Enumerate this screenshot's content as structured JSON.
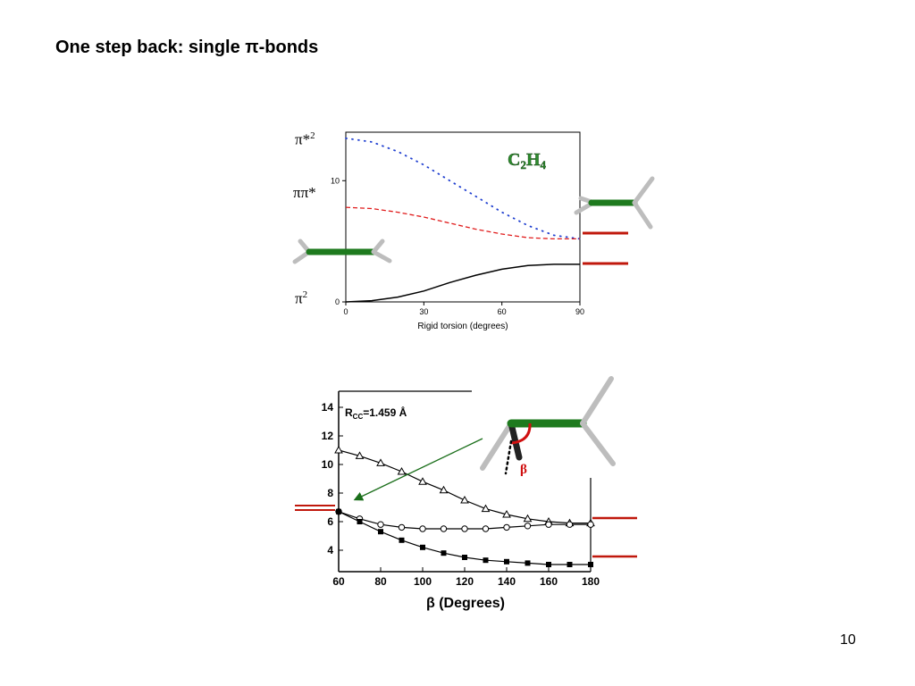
{
  "slide": {
    "title": "One step back: single π-bonds",
    "page_number": "10"
  },
  "top_plot": {
    "molecule_label": "C2H4",
    "molecule_label_main": "C",
    "molecule_label_sub1": "2",
    "molecule_label_mid": "H",
    "molecule_label_sub2": "4",
    "state_labels": {
      "pi_star_sq": "π*",
      "pi_star_sq_sup": "2",
      "pi_pi_star": "ππ*",
      "pi_sq": "π",
      "pi_sq_sup": "2"
    }
  },
  "bottom_plot": {
    "annotation_main": "R",
    "annotation_sub": "CC",
    "annotation_rest": "=1.459 Å",
    "beta_marker": "β"
  },
  "chart_data": [
    {
      "type": "line",
      "xlabel": "Rigid torsion (degrees)",
      "ylabel": "",
      "xlim": [
        0,
        90
      ],
      "ylim": [
        0,
        14
      ],
      "x_ticks": [
        "0",
        "30",
        "60",
        "90"
      ],
      "y_ticks": [
        "0",
        "10"
      ],
      "series": [
        {
          "name": "π*2",
          "style": "dotted",
          "color": "#1f3fd0",
          "x": [
            0,
            10,
            20,
            30,
            40,
            50,
            60,
            70,
            80,
            90
          ],
          "y": [
            13.5,
            13.2,
            12.4,
            11.3,
            10.0,
            8.7,
            7.4,
            6.3,
            5.5,
            5.2
          ]
        },
        {
          "name": "ππ*",
          "style": "dashed",
          "color": "#e01a1a",
          "x": [
            0,
            10,
            20,
            30,
            40,
            50,
            60,
            70,
            80,
            90
          ],
          "y": [
            7.8,
            7.7,
            7.4,
            7.0,
            6.5,
            6.0,
            5.6,
            5.3,
            5.2,
            5.2
          ]
        },
        {
          "name": "π2",
          "style": "solid",
          "color": "#000000",
          "x": [
            0,
            10,
            20,
            30,
            40,
            50,
            60,
            70,
            80,
            90
          ],
          "y": [
            0,
            0.1,
            0.4,
            0.9,
            1.6,
            2.2,
            2.7,
            3.0,
            3.1,
            3.1
          ]
        }
      ]
    },
    {
      "type": "line",
      "xlabel": "β (Degrees)",
      "ylabel": "",
      "xlim": [
        60,
        180
      ],
      "ylim": [
        2.5,
        15
      ],
      "x_ticks": [
        "60",
        "80",
        "100",
        "120",
        "140",
        "160",
        "180"
      ],
      "y_ticks": [
        "4",
        "6",
        "8",
        "10",
        "12",
        "14"
      ],
      "series": [
        {
          "marker": "triangle",
          "x": [
            60,
            70,
            80,
            90,
            100,
            110,
            120,
            130,
            140,
            150,
            160,
            170,
            180
          ],
          "y": [
            11.0,
            10.6,
            10.1,
            9.5,
            8.8,
            8.2,
            7.5,
            6.9,
            6.5,
            6.2,
            6.0,
            5.9,
            5.9
          ]
        },
        {
          "marker": "circle",
          "x": [
            60,
            70,
            80,
            90,
            100,
            110,
            120,
            130,
            140,
            150,
            160,
            170,
            180
          ],
          "y": [
            6.7,
            6.2,
            5.8,
            5.6,
            5.5,
            5.5,
            5.5,
            5.5,
            5.6,
            5.7,
            5.8,
            5.8,
            5.8
          ]
        },
        {
          "marker": "square",
          "x": [
            60,
            70,
            80,
            90,
            100,
            110,
            120,
            130,
            140,
            150,
            160,
            170,
            180
          ],
          "y": [
            6.7,
            6.0,
            5.3,
            4.7,
            4.2,
            3.8,
            3.5,
            3.3,
            3.2,
            3.1,
            3.0,
            3.0,
            3.0
          ]
        }
      ]
    }
  ],
  "colors": {
    "green_bond": "#1e7a1e",
    "hydrogen": "#c8c8c8",
    "red_level": "#c0180c",
    "arrow_green": "#1a6e1a"
  }
}
